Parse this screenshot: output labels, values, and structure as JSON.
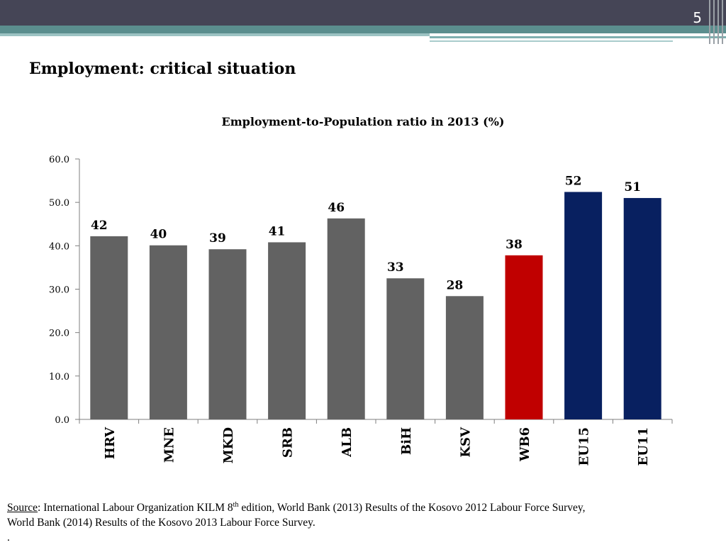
{
  "slide": {
    "number": "5",
    "title": "Employment: critical situation"
  },
  "colors": {
    "header_dark": "#454556",
    "accent_teal": "#5b8e8e",
    "bar_default": "#626262",
    "bar_wb6": "#c00000",
    "bar_eu": "#082060"
  },
  "chart_data": {
    "type": "bar",
    "title": "Employment-to-Population ratio in 2013 (%)",
    "categories": [
      "HRV",
      "MNE",
      "MKD",
      "SRB",
      "ALB",
      "BiH",
      "KSV",
      "WB6",
      "EU15",
      "EU11"
    ],
    "values": [
      42.2,
      40.1,
      39.2,
      40.8,
      46.3,
      32.5,
      28.4,
      37.8,
      52.4,
      51.0
    ],
    "value_labels": [
      "42",
      "40",
      "39",
      "41",
      "46",
      "33",
      "28",
      "38",
      "52",
      "51"
    ],
    "bar_colors": [
      "#626262",
      "#626262",
      "#626262",
      "#626262",
      "#626262",
      "#626262",
      "#626262",
      "#c00000",
      "#082060",
      "#082060"
    ],
    "yticks": [
      "0.0",
      "10.0",
      "20.0",
      "30.0",
      "40.0",
      "50.0",
      "60.0"
    ],
    "ylim": [
      0,
      60
    ],
    "xlabel": "",
    "ylabel": "",
    "grid": false,
    "legend": "none"
  },
  "source": {
    "label": "Source",
    "text_before_sup": ": International Labour Organization KILM 8",
    "sup": "th",
    "text_after_sup": " edition, World Bank (2013) Results of the Kosovo 2012 Labour Force Survey,",
    "line2": "World Bank (2014) Results of the Kosovo 2013 Labour Force Survey.",
    "line3": "."
  }
}
